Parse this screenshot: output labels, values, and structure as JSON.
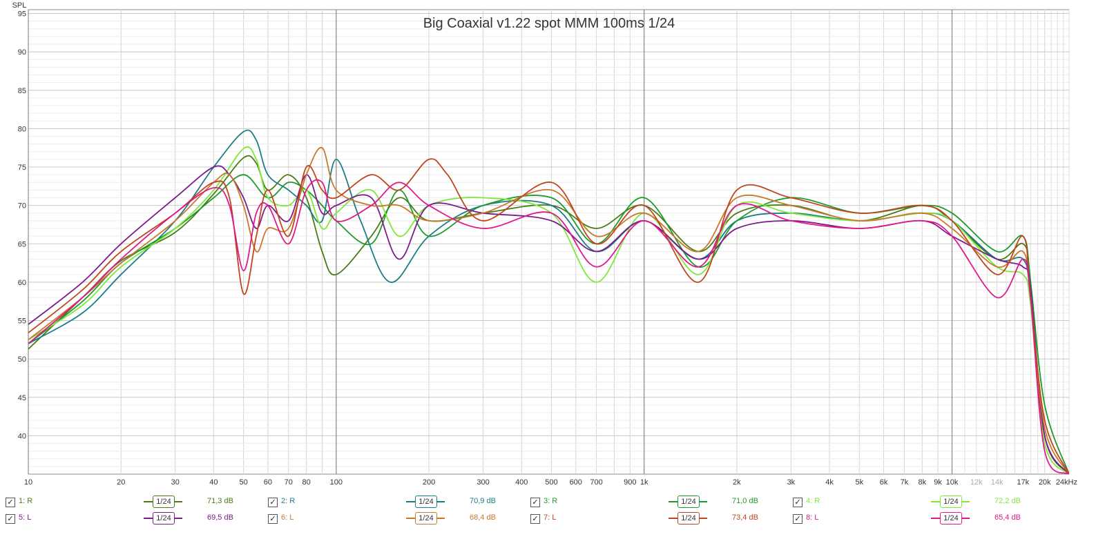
{
  "chart_data": {
    "type": "line",
    "title": "Big Coaxial v1.22 spot MMM 100ms 1/24",
    "ylabel": "SPL",
    "xlabel": "",
    "xscale": "log",
    "xlim": [
      10,
      24000
    ],
    "ylim": [
      35,
      95.5
    ],
    "grid": true,
    "y_ticks": [
      40,
      45,
      50,
      55,
      60,
      65,
      70,
      75,
      80,
      85,
      90,
      95
    ],
    "x_ticks": [
      {
        "v": 10,
        "t": "10",
        "dark": true
      },
      {
        "v": 20,
        "t": "20"
      },
      {
        "v": 30,
        "t": "30"
      },
      {
        "v": 40,
        "t": "40"
      },
      {
        "v": 50,
        "t": "50"
      },
      {
        "v": 60,
        "t": "60"
      },
      {
        "v": 70,
        "t": "70"
      },
      {
        "v": 80,
        "t": "80"
      },
      {
        "v": 100,
        "t": "100",
        "dark": true
      },
      {
        "v": 200,
        "t": "200"
      },
      {
        "v": 300,
        "t": "300"
      },
      {
        "v": 400,
        "t": "400"
      },
      {
        "v": 500,
        "t": "500"
      },
      {
        "v": 600,
        "t": "600"
      },
      {
        "v": 700,
        "t": "700"
      },
      {
        "v": 900,
        "t": "900"
      },
      {
        "v": 1000,
        "t": "1k",
        "dark": true
      },
      {
        "v": 2000,
        "t": "2k"
      },
      {
        "v": 3000,
        "t": "3k"
      },
      {
        "v": 4000,
        "t": "4k"
      },
      {
        "v": 5000,
        "t": "5k"
      },
      {
        "v": 6000,
        "t": "6k"
      },
      {
        "v": 7000,
        "t": "7k"
      },
      {
        "v": 8000,
        "t": "8k"
      },
      {
        "v": 9000,
        "t": "9k"
      },
      {
        "v": 10000,
        "t": "10k",
        "dark": true
      },
      {
        "v": 12000,
        "t": "12k",
        "faded": true
      },
      {
        "v": 14000,
        "t": "14k",
        "faded": true
      },
      {
        "v": 17000,
        "t": "17k"
      },
      {
        "v": 20000,
        "t": "20k"
      },
      {
        "v": 24000,
        "t": "24kHz"
      }
    ],
    "series": [
      {
        "name": "1: R",
        "color": "#4a7a14",
        "smoothing": "1/24",
        "level": "71,3 dB",
        "points": [
          [
            10,
            51.3
          ],
          [
            15,
            58
          ],
          [
            20,
            62.8
          ],
          [
            30,
            66.5
          ],
          [
            40,
            71.5
          ],
          [
            50,
            76.2
          ],
          [
            55,
            75.5
          ],
          [
            60,
            72
          ],
          [
            70,
            74
          ],
          [
            80,
            71
          ],
          [
            90,
            64
          ],
          [
            100,
            61
          ],
          [
            130,
            66
          ],
          [
            160,
            71
          ],
          [
            200,
            68
          ],
          [
            300,
            69
          ],
          [
            500,
            70
          ],
          [
            700,
            67
          ],
          [
            1000,
            70
          ],
          [
            1500,
            64
          ],
          [
            2000,
            69
          ],
          [
            3000,
            70
          ],
          [
            5000,
            68
          ],
          [
            8000,
            70
          ],
          [
            10000,
            68
          ],
          [
            14000,
            63
          ],
          [
            17000,
            65
          ],
          [
            18000,
            60
          ],
          [
            20000,
            40
          ],
          [
            24000,
            35
          ]
        ]
      },
      {
        "name": "2: R",
        "color": "#1a7d86",
        "smoothing": "1/24",
        "level": "70,9 dB",
        "points": [
          [
            10,
            52
          ],
          [
            15,
            56
          ],
          [
            20,
            61
          ],
          [
            30,
            68
          ],
          [
            40,
            75
          ],
          [
            50,
            79.6
          ],
          [
            55,
            78.5
          ],
          [
            60,
            74
          ],
          [
            70,
            72
          ],
          [
            80,
            70
          ],
          [
            90,
            68
          ],
          [
            100,
            76
          ],
          [
            120,
            68
          ],
          [
            150,
            60
          ],
          [
            200,
            66
          ],
          [
            300,
            70
          ],
          [
            500,
            70
          ],
          [
            700,
            64
          ],
          [
            1000,
            68
          ],
          [
            1500,
            63
          ],
          [
            2000,
            68
          ],
          [
            3000,
            69
          ],
          [
            5000,
            68
          ],
          [
            8000,
            69
          ],
          [
            10000,
            68
          ],
          [
            14000,
            63
          ],
          [
            17000,
            63
          ],
          [
            18000,
            58
          ],
          [
            20000,
            40
          ],
          [
            24000,
            35
          ]
        ]
      },
      {
        "name": "3: R",
        "color": "#1d9a2a",
        "smoothing": "1/24",
        "level": "71,0 dB",
        "points": [
          [
            10,
            52
          ],
          [
            15,
            57.5
          ],
          [
            20,
            62.5
          ],
          [
            30,
            67
          ],
          [
            40,
            71
          ],
          [
            50,
            74
          ],
          [
            60,
            71
          ],
          [
            70,
            73
          ],
          [
            80,
            72
          ],
          [
            90,
            70
          ],
          [
            100,
            68
          ],
          [
            130,
            65
          ],
          [
            160,
            72
          ],
          [
            200,
            66
          ],
          [
            300,
            70
          ],
          [
            500,
            71
          ],
          [
            700,
            65
          ],
          [
            1000,
            71
          ],
          [
            1500,
            62
          ],
          [
            2000,
            68
          ],
          [
            3000,
            71
          ],
          [
            5000,
            69
          ],
          [
            8000,
            70
          ],
          [
            10000,
            69
          ],
          [
            14000,
            64
          ],
          [
            17000,
            66
          ],
          [
            18000,
            60
          ],
          [
            20000,
            44
          ],
          [
            24000,
            35
          ]
        ]
      },
      {
        "name": "4: R",
        "color": "#7de83a",
        "smoothing": "1/24",
        "level": "72,2 dB",
        "points": [
          [
            10,
            52.5
          ],
          [
            15,
            57
          ],
          [
            20,
            62
          ],
          [
            30,
            67
          ],
          [
            40,
            72
          ],
          [
            50,
            77.4
          ],
          [
            55,
            76
          ],
          [
            60,
            71
          ],
          [
            70,
            70
          ],
          [
            80,
            72
          ],
          [
            90,
            67
          ],
          [
            100,
            69
          ],
          [
            130,
            72
          ],
          [
            160,
            66
          ],
          [
            200,
            70
          ],
          [
            300,
            71
          ],
          [
            500,
            69
          ],
          [
            700,
            60
          ],
          [
            1000,
            69
          ],
          [
            1500,
            61
          ],
          [
            2000,
            70
          ],
          [
            3000,
            69
          ],
          [
            5000,
            68
          ],
          [
            8000,
            69
          ],
          [
            10000,
            68
          ],
          [
            14000,
            62
          ],
          [
            17000,
            61
          ],
          [
            18000,
            57
          ],
          [
            20000,
            39
          ],
          [
            24000,
            35
          ]
        ]
      },
      {
        "name": "5: L",
        "color": "#7d1a8c",
        "smoothing": "1/24",
        "level": "69,5 dB",
        "points": [
          [
            10,
            54.5
          ],
          [
            15,
            60
          ],
          [
            20,
            65
          ],
          [
            30,
            71
          ],
          [
            40,
            75
          ],
          [
            45,
            74
          ],
          [
            50,
            71
          ],
          [
            55,
            67
          ],
          [
            60,
            70
          ],
          [
            70,
            68
          ],
          [
            80,
            74
          ],
          [
            90,
            69
          ],
          [
            100,
            70
          ],
          [
            130,
            71
          ],
          [
            160,
            63
          ],
          [
            200,
            70
          ],
          [
            300,
            69
          ],
          [
            500,
            68
          ],
          [
            700,
            64
          ],
          [
            1000,
            68
          ],
          [
            1500,
            63
          ],
          [
            2000,
            67
          ],
          [
            3000,
            68
          ],
          [
            5000,
            67
          ],
          [
            8000,
            68
          ],
          [
            10000,
            66
          ],
          [
            14000,
            63
          ],
          [
            17000,
            62
          ],
          [
            18000,
            59
          ],
          [
            20000,
            40
          ],
          [
            24000,
            35
          ]
        ]
      },
      {
        "name": "6: L",
        "color": "#c9782a",
        "smoothing": "1/24",
        "level": "68,4 dB",
        "points": [
          [
            10,
            52.5
          ],
          [
            15,
            58
          ],
          [
            20,
            62.5
          ],
          [
            30,
            68
          ],
          [
            40,
            73
          ],
          [
            45,
            74
          ],
          [
            50,
            70
          ],
          [
            55,
            64
          ],
          [
            60,
            67
          ],
          [
            70,
            67
          ],
          [
            80,
            74
          ],
          [
            90,
            77.5
          ],
          [
            100,
            72
          ],
          [
            130,
            70
          ],
          [
            160,
            70
          ],
          [
            200,
            68
          ],
          [
            300,
            69
          ],
          [
            500,
            72
          ],
          [
            700,
            66
          ],
          [
            1000,
            69
          ],
          [
            1500,
            64
          ],
          [
            2000,
            71
          ],
          [
            3000,
            70
          ],
          [
            5000,
            68
          ],
          [
            8000,
            69
          ],
          [
            10000,
            67
          ],
          [
            14000,
            62
          ],
          [
            17000,
            64
          ],
          [
            18000,
            58
          ],
          [
            20000,
            41
          ],
          [
            24000,
            35
          ]
        ]
      },
      {
        "name": "7: L",
        "color": "#c0441c",
        "smoothing": "1/24",
        "level": "73,4 dB",
        "points": [
          [
            10,
            53.4
          ],
          [
            15,
            59
          ],
          [
            20,
            64
          ],
          [
            30,
            69
          ],
          [
            40,
            73
          ],
          [
            45,
            71
          ],
          [
            50,
            58.5
          ],
          [
            55,
            66
          ],
          [
            60,
            72
          ],
          [
            70,
            66
          ],
          [
            80,
            75
          ],
          [
            90,
            72
          ],
          [
            100,
            71
          ],
          [
            130,
            74
          ],
          [
            160,
            72
          ],
          [
            200,
            76
          ],
          [
            230,
            74
          ],
          [
            300,
            68
          ],
          [
            500,
            73
          ],
          [
            700,
            65
          ],
          [
            1000,
            70
          ],
          [
            1500,
            60
          ],
          [
            2000,
            72
          ],
          [
            3000,
            71
          ],
          [
            5000,
            69
          ],
          [
            8000,
            70
          ],
          [
            10000,
            68
          ],
          [
            14000,
            61
          ],
          [
            17000,
            66
          ],
          [
            18000,
            58
          ],
          [
            20000,
            42
          ],
          [
            24000,
            35
          ]
        ]
      },
      {
        "name": "8: L",
        "color": "#e0188c",
        "smoothing": "1/24",
        "level": "65,4 dB",
        "points": [
          [
            10,
            52
          ],
          [
            15,
            58
          ],
          [
            20,
            63
          ],
          [
            30,
            69
          ],
          [
            40,
            72.3
          ],
          [
            45,
            70
          ],
          [
            50,
            61.5
          ],
          [
            55,
            69
          ],
          [
            60,
            70
          ],
          [
            70,
            65
          ],
          [
            80,
            72
          ],
          [
            90,
            73
          ],
          [
            100,
            68
          ],
          [
            130,
            70
          ],
          [
            160,
            73
          ],
          [
            200,
            70
          ],
          [
            300,
            67
          ],
          [
            500,
            69
          ],
          [
            700,
            62
          ],
          [
            1000,
            68
          ],
          [
            1500,
            62
          ],
          [
            2000,
            70
          ],
          [
            3000,
            68
          ],
          [
            5000,
            67
          ],
          [
            8000,
            68
          ],
          [
            10000,
            66
          ],
          [
            14000,
            58
          ],
          [
            17000,
            63
          ],
          [
            18000,
            58
          ],
          [
            20000,
            38
          ],
          [
            24000,
            35
          ]
        ]
      }
    ]
  },
  "legend": [
    {
      "label": "1: R",
      "smoothing": "1/24",
      "level": "71,3 dB",
      "color": "#4a7a14"
    },
    {
      "label": "2: R",
      "smoothing": "1/24",
      "level": "70,9 dB",
      "color": "#1a7d86"
    },
    {
      "label": "3: R",
      "smoothing": "1/24",
      "level": "71,0 dB",
      "color": "#1d9a2a"
    },
    {
      "label": "4: R",
      "smoothing": "1/24",
      "level": "72,2 dB",
      "color": "#7de83a"
    },
    {
      "label": "5: L",
      "smoothing": "1/24",
      "level": "69,5 dB",
      "color": "#7d1a8c"
    },
    {
      "label": "6: L",
      "smoothing": "1/24",
      "level": "68,4 dB",
      "color": "#c9782a"
    },
    {
      "label": "7: L",
      "smoothing": "1/24",
      "level": "73,4 dB",
      "color": "#c0441c"
    },
    {
      "label": "8: L",
      "smoothing": "1/24",
      "level": "65,4 dB",
      "color": "#e0188c"
    }
  ],
  "checkbox_glyph": "✓"
}
